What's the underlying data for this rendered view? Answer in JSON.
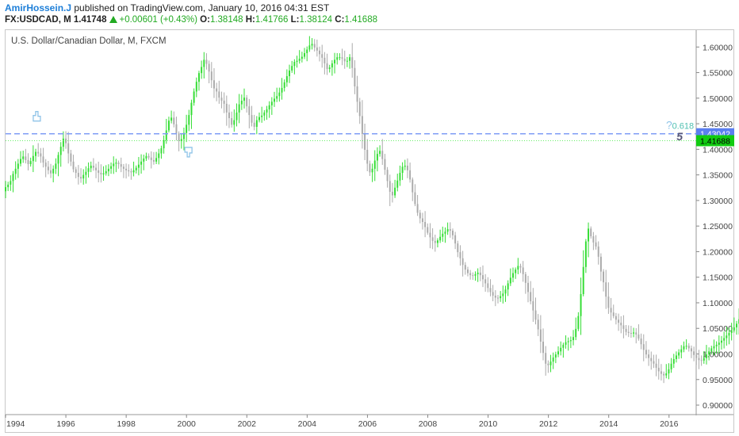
{
  "header": {
    "author": "AmirHossein.J",
    "published_text": "published on TradingView.com, January 10, 2016 04:31 EST",
    "symbol": "FX:USDCAD, M",
    "last": "1.41748",
    "change": "+0.00601 (+0.43%)",
    "open_label": "O:",
    "open": "1.38148",
    "high_label": "H:",
    "high": "1.41766",
    "low_label": "L:",
    "low": "1.38124",
    "close_label": "C:",
    "close": "1.41688"
  },
  "colors": {
    "up": "#33dd33",
    "down": "#aaaaaa",
    "dashed_line": "#7f9cf5",
    "dotted_line": "#66ee66",
    "label_blue": "#5b7ff0",
    "label_green": "#11cc11",
    "fib_text": "#4dbfb0",
    "wave_text": "#555577",
    "marker": "#8fc4e8"
  },
  "chart_data": {
    "type": "candlestick",
    "title": "U.S. Dollar/Canadian Dollar, M, FXCM",
    "x_ticks": [
      "1994",
      "1996",
      "1998",
      "2000",
      "2002",
      "2004",
      "2006",
      "2008",
      "2010",
      "2012",
      "2014",
      "2016"
    ],
    "y_ticks": [
      "0.90000",
      "0.95000",
      "1.00000",
      "1.05000",
      "1.10000",
      "1.15000",
      "1.20000",
      "1.25000",
      "1.30000",
      "1.35000",
      "1.40000",
      "1.45000",
      "1.50000",
      "1.55000",
      "1.60000"
    ],
    "xlim": [
      1994.0,
      2016.9
    ],
    "ylim": [
      0.883,
      1.633
    ],
    "grid": false,
    "price_labels": [
      {
        "value": 1.43042,
        "text": "1.43042",
        "style": "dashed-blue"
      },
      {
        "value": 1.41688,
        "text": "1.41688",
        "style": "dotted-green"
      }
    ],
    "annotations": [
      {
        "text": "0.618",
        "x": 2016.1,
        "y": 1.446
      },
      {
        "text": "5",
        "x": 2016.25,
        "y": 1.424
      },
      {
        "text": "?",
        "x": 2015.9,
        "y": 1.446
      }
    ],
    "close_series": {
      "start_year": 1994.0,
      "step_years": 0.0833,
      "values": [
        1.326,
        1.331,
        1.338,
        1.352,
        1.362,
        1.372,
        1.381,
        1.386,
        1.379,
        1.371,
        1.377,
        1.387,
        1.395,
        1.392,
        1.386,
        1.374,
        1.366,
        1.359,
        1.353,
        1.362,
        1.372,
        1.389,
        1.405,
        1.421,
        1.412,
        1.392,
        1.376,
        1.361,
        1.354,
        1.346,
        1.343,
        1.35,
        1.356,
        1.363,
        1.368,
        1.364,
        1.359,
        1.354,
        1.351,
        1.353,
        1.357,
        1.362,
        1.367,
        1.372,
        1.374,
        1.371,
        1.366,
        1.362,
        1.359,
        1.357,
        1.355,
        1.359,
        1.364,
        1.37,
        1.376,
        1.382,
        1.387,
        1.384,
        1.379,
        1.376,
        1.383,
        1.392,
        1.402,
        1.418,
        1.437,
        1.456,
        1.462,
        1.449,
        1.431,
        1.416,
        1.42,
        1.432,
        1.448,
        1.467,
        1.491,
        1.513,
        1.532,
        1.549,
        1.561,
        1.575,
        1.567,
        1.552,
        1.535,
        1.519,
        1.513,
        1.501,
        1.495,
        1.489,
        1.472,
        1.461,
        1.448,
        1.457,
        1.472,
        1.488,
        1.495,
        1.501,
        1.484,
        1.467,
        1.452,
        1.444,
        1.457,
        1.463,
        1.466,
        1.472,
        1.478,
        1.486,
        1.493,
        1.499,
        1.504,
        1.511,
        1.52,
        1.531,
        1.543,
        1.554,
        1.563,
        1.571,
        1.573,
        1.577,
        1.581,
        1.588,
        1.595,
        1.603,
        1.606,
        1.599,
        1.593,
        1.586,
        1.579,
        1.568,
        1.557,
        1.56,
        1.568,
        1.575,
        1.58,
        1.58,
        1.577,
        1.572,
        1.573,
        1.58,
        1.559,
        1.523,
        1.493,
        1.465,
        1.43,
        1.399,
        1.372,
        1.355,
        1.362,
        1.378,
        1.391,
        1.397,
        1.381,
        1.36,
        1.338,
        1.317,
        1.31,
        1.325,
        1.339,
        1.354,
        1.366,
        1.368,
        1.359,
        1.341,
        1.316,
        1.293,
        1.276,
        1.265,
        1.258,
        1.248,
        1.237,
        1.228,
        1.221,
        1.217,
        1.222,
        1.229,
        1.235,
        1.239,
        1.244,
        1.241,
        1.232,
        1.216,
        1.199,
        1.187,
        1.174,
        1.165,
        1.158,
        1.154,
        1.153,
        1.156,
        1.159,
        1.154,
        1.146,
        1.138,
        1.129,
        1.121,
        1.114,
        1.11,
        1.109,
        1.113,
        1.118,
        1.126,
        1.138,
        1.149,
        1.158,
        1.165,
        1.172,
        1.169,
        1.156,
        1.139,
        1.121,
        1.103,
        1.085,
        1.067,
        1.048,
        1.024,
        1.002,
        0.981,
        0.978,
        0.985,
        0.993,
        0.999,
        1.005,
        1.012,
        1.018,
        1.023,
        1.025,
        1.027,
        1.033,
        1.049,
        1.074,
        1.117,
        1.17,
        1.22,
        1.245,
        1.23,
        1.218,
        1.21,
        1.19,
        1.161,
        1.14,
        1.112,
        1.09,
        1.081,
        1.074,
        1.067,
        1.061,
        1.056,
        1.049,
        1.043,
        1.041,
        1.04,
        1.042,
        1.038,
        1.03,
        1.019,
        1.008,
        0.999,
        0.992,
        0.986,
        0.981,
        0.973,
        0.966,
        0.961,
        0.958,
        0.962,
        0.97,
        0.981,
        0.99,
        0.997,
        1.003,
        1.009,
        1.015,
        1.016,
        1.011,
        1.005,
        0.998,
        0.992,
        0.988,
        0.987,
        0.992,
        0.999,
        1.005,
        1.011,
        1.015,
        1.018,
        1.022,
        1.026,
        1.031,
        1.036,
        1.041,
        1.046,
        1.052,
        1.059,
        1.068,
        1.083,
        1.097,
        1.108,
        1.101,
        1.091,
        1.081,
        1.077,
        1.085,
        1.096,
        1.106,
        1.116,
        1.126,
        1.143,
        1.164,
        1.196,
        1.231,
        1.257,
        1.254,
        1.241,
        1.232,
        1.228,
        1.229,
        1.236,
        1.258,
        1.283,
        1.312,
        1.33,
        1.333,
        1.326,
        1.318,
        1.324,
        1.337,
        1.356,
        1.381,
        1.402,
        1.416
      ]
    }
  }
}
